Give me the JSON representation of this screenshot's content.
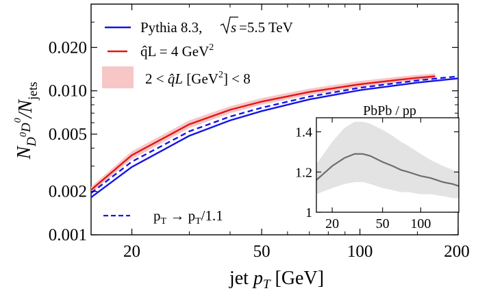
{
  "chart_data": {
    "type": "line",
    "xscale": "log",
    "yscale": "log",
    "xlim": [
      15,
      200
    ],
    "ylim": [
      0.001,
      0.04
    ],
    "xlabel": "jet p_T [GeV]",
    "xticks": [
      20,
      50,
      100,
      200
    ],
    "xtick_labels": [
      "20",
      "50",
      "100",
      "200"
    ],
    "ylabel": "N_D0D0 / N_jets",
    "yticks": [
      0.001,
      0.002,
      0.005,
      0.01,
      0.02
    ],
    "ytick_labels": [
      "0.001",
      "0.002",
      "0.005",
      "0.010",
      "0.020"
    ],
    "legend": {
      "pythia": "Pythia 8.3,",
      "sqrts_label": "s",
      "sqrts_value": "=5.5 TeV",
      "qhat_line_pre": "q̂L = 4 GeV",
      "qhat_line_sup": "2",
      "band_pre": "2 < ",
      "band_qhat": "q̂L",
      "band_mid": " [GeV",
      "band_sup": "2",
      "band_post": "] < 8",
      "shift_lhs": "p",
      "shift_lhs_sub": "T",
      "shift_arrow": " → p",
      "shift_rhs_sub": "T",
      "shift_rhs_post": "/1.1"
    },
    "series": [
      {
        "name": "Pythia 8.3, √s=5.5 TeV",
        "style": "solid",
        "color": "#1414e6",
        "x": [
          15,
          20,
          30,
          40,
          50,
          70,
          100,
          150,
          200
        ],
        "y": [
          0.00182,
          0.00296,
          0.00487,
          0.00623,
          0.00723,
          0.00872,
          0.0101,
          0.0114,
          0.0122
        ]
      },
      {
        "name": "pT → pT/1.1",
        "style": "dashed",
        "color": "#1414e6",
        "x": [
          15,
          20,
          30,
          40,
          50,
          70,
          100,
          150,
          200
        ],
        "y": [
          0.00195,
          0.00322,
          0.00523,
          0.00662,
          0.00763,
          0.00912,
          0.0105,
          0.0118,
          0.0126
        ]
      },
      {
        "name": "q̂L = 4 GeV²",
        "style": "solid",
        "color": "#e61414",
        "x": [
          15,
          20,
          30,
          40,
          50,
          70,
          100,
          130,
          150,
          170
        ],
        "y": [
          0.00205,
          0.00357,
          0.00585,
          0.00738,
          0.00842,
          0.00982,
          0.0111,
          0.0119,
          0.0123,
          0.0126
        ]
      }
    ],
    "band": {
      "name": "2 < q̂L [GeV²] < 8",
      "color": "#f7c6c6",
      "x": [
        15,
        20,
        30,
        40,
        50,
        70,
        100,
        130,
        150,
        170
      ],
      "y_low": [
        0.00196,
        0.00335,
        0.00551,
        0.00698,
        0.008,
        0.00935,
        0.0106,
        0.0114,
        0.0118,
        0.0121
      ],
      "y_high": [
        0.00216,
        0.0038,
        0.00623,
        0.00782,
        0.0089,
        0.01035,
        0.0117,
        0.0125,
        0.0129,
        0.0132
      ]
    },
    "inset": {
      "title": "PbPb / pp",
      "xscale": "log",
      "xlim": [
        15,
        200
      ],
      "ylim": [
        1.0,
        1.47
      ],
      "xticks": [
        20,
        50,
        100
      ],
      "xtick_labels": [
        "20",
        "50",
        "100"
      ],
      "yticks": [
        1.0,
        1.2,
        1.4
      ],
      "ytick_labels": [
        "1",
        "1.2",
        "1.4"
      ],
      "ratio": {
        "x": [
          15,
          20,
          25,
          30,
          35,
          40,
          50,
          60,
          70,
          80,
          100,
          120,
          150,
          180,
          200
        ],
        "y": [
          1.16,
          1.23,
          1.27,
          1.29,
          1.29,
          1.28,
          1.25,
          1.23,
          1.21,
          1.2,
          1.18,
          1.17,
          1.15,
          1.14,
          1.13
        ],
        "color": "#6e6e6e"
      },
      "band": {
        "x": [
          15,
          20,
          25,
          30,
          35,
          40,
          50,
          60,
          70,
          80,
          100,
          120,
          150,
          180,
          200
        ],
        "y_low": [
          1.09,
          1.12,
          1.14,
          1.15,
          1.15,
          1.14,
          1.12,
          1.11,
          1.1,
          1.1,
          1.09,
          1.09,
          1.08,
          1.07,
          1.07
        ],
        "y_high": [
          1.24,
          1.35,
          1.42,
          1.45,
          1.45,
          1.44,
          1.41,
          1.38,
          1.35,
          1.33,
          1.29,
          1.26,
          1.23,
          1.21,
          1.2
        ],
        "color": "#e3e3e3"
      }
    }
  }
}
